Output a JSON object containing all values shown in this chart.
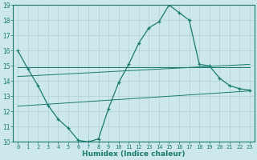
{
  "x": [
    0,
    1,
    2,
    3,
    4,
    5,
    6,
    7,
    8,
    9,
    10,
    11,
    12,
    13,
    14,
    15,
    16,
    17,
    18,
    19,
    20,
    21,
    22,
    23
  ],
  "humidex": [
    16.0,
    14.8,
    13.7,
    12.4,
    11.5,
    10.9,
    10.1,
    10.0,
    10.2,
    12.2,
    13.9,
    15.1,
    16.5,
    17.5,
    17.9,
    19.0,
    18.5,
    18.0,
    15.1,
    15.0,
    14.2,
    13.7,
    13.5,
    13.4
  ],
  "trend1_x": [
    0,
    23
  ],
  "trend1_y": [
    14.9,
    14.9
  ],
  "trend2_x": [
    0,
    23
  ],
  "trend2_y": [
    14.3,
    15.1
  ],
  "trend3_x": [
    0,
    23
  ],
  "trend3_y": [
    12.35,
    13.35
  ],
  "color": "#1a7a6e",
  "bg_color": "#cce8ec",
  "grid_color": "#aed0d5",
  "xlabel": "Humidex (Indice chaleur)",
  "ylim": [
    10,
    19
  ],
  "xlim": [
    -0.5,
    23.5
  ],
  "yticks": [
    10,
    11,
    12,
    13,
    14,
    15,
    16,
    17,
    18,
    19
  ],
  "xticks": [
    0,
    1,
    2,
    3,
    4,
    5,
    6,
    7,
    8,
    9,
    10,
    11,
    12,
    13,
    14,
    15,
    16,
    17,
    18,
    19,
    20,
    21,
    22,
    23
  ],
  "tick_fontsize": 5.0,
  "xlabel_fontsize": 6.5
}
